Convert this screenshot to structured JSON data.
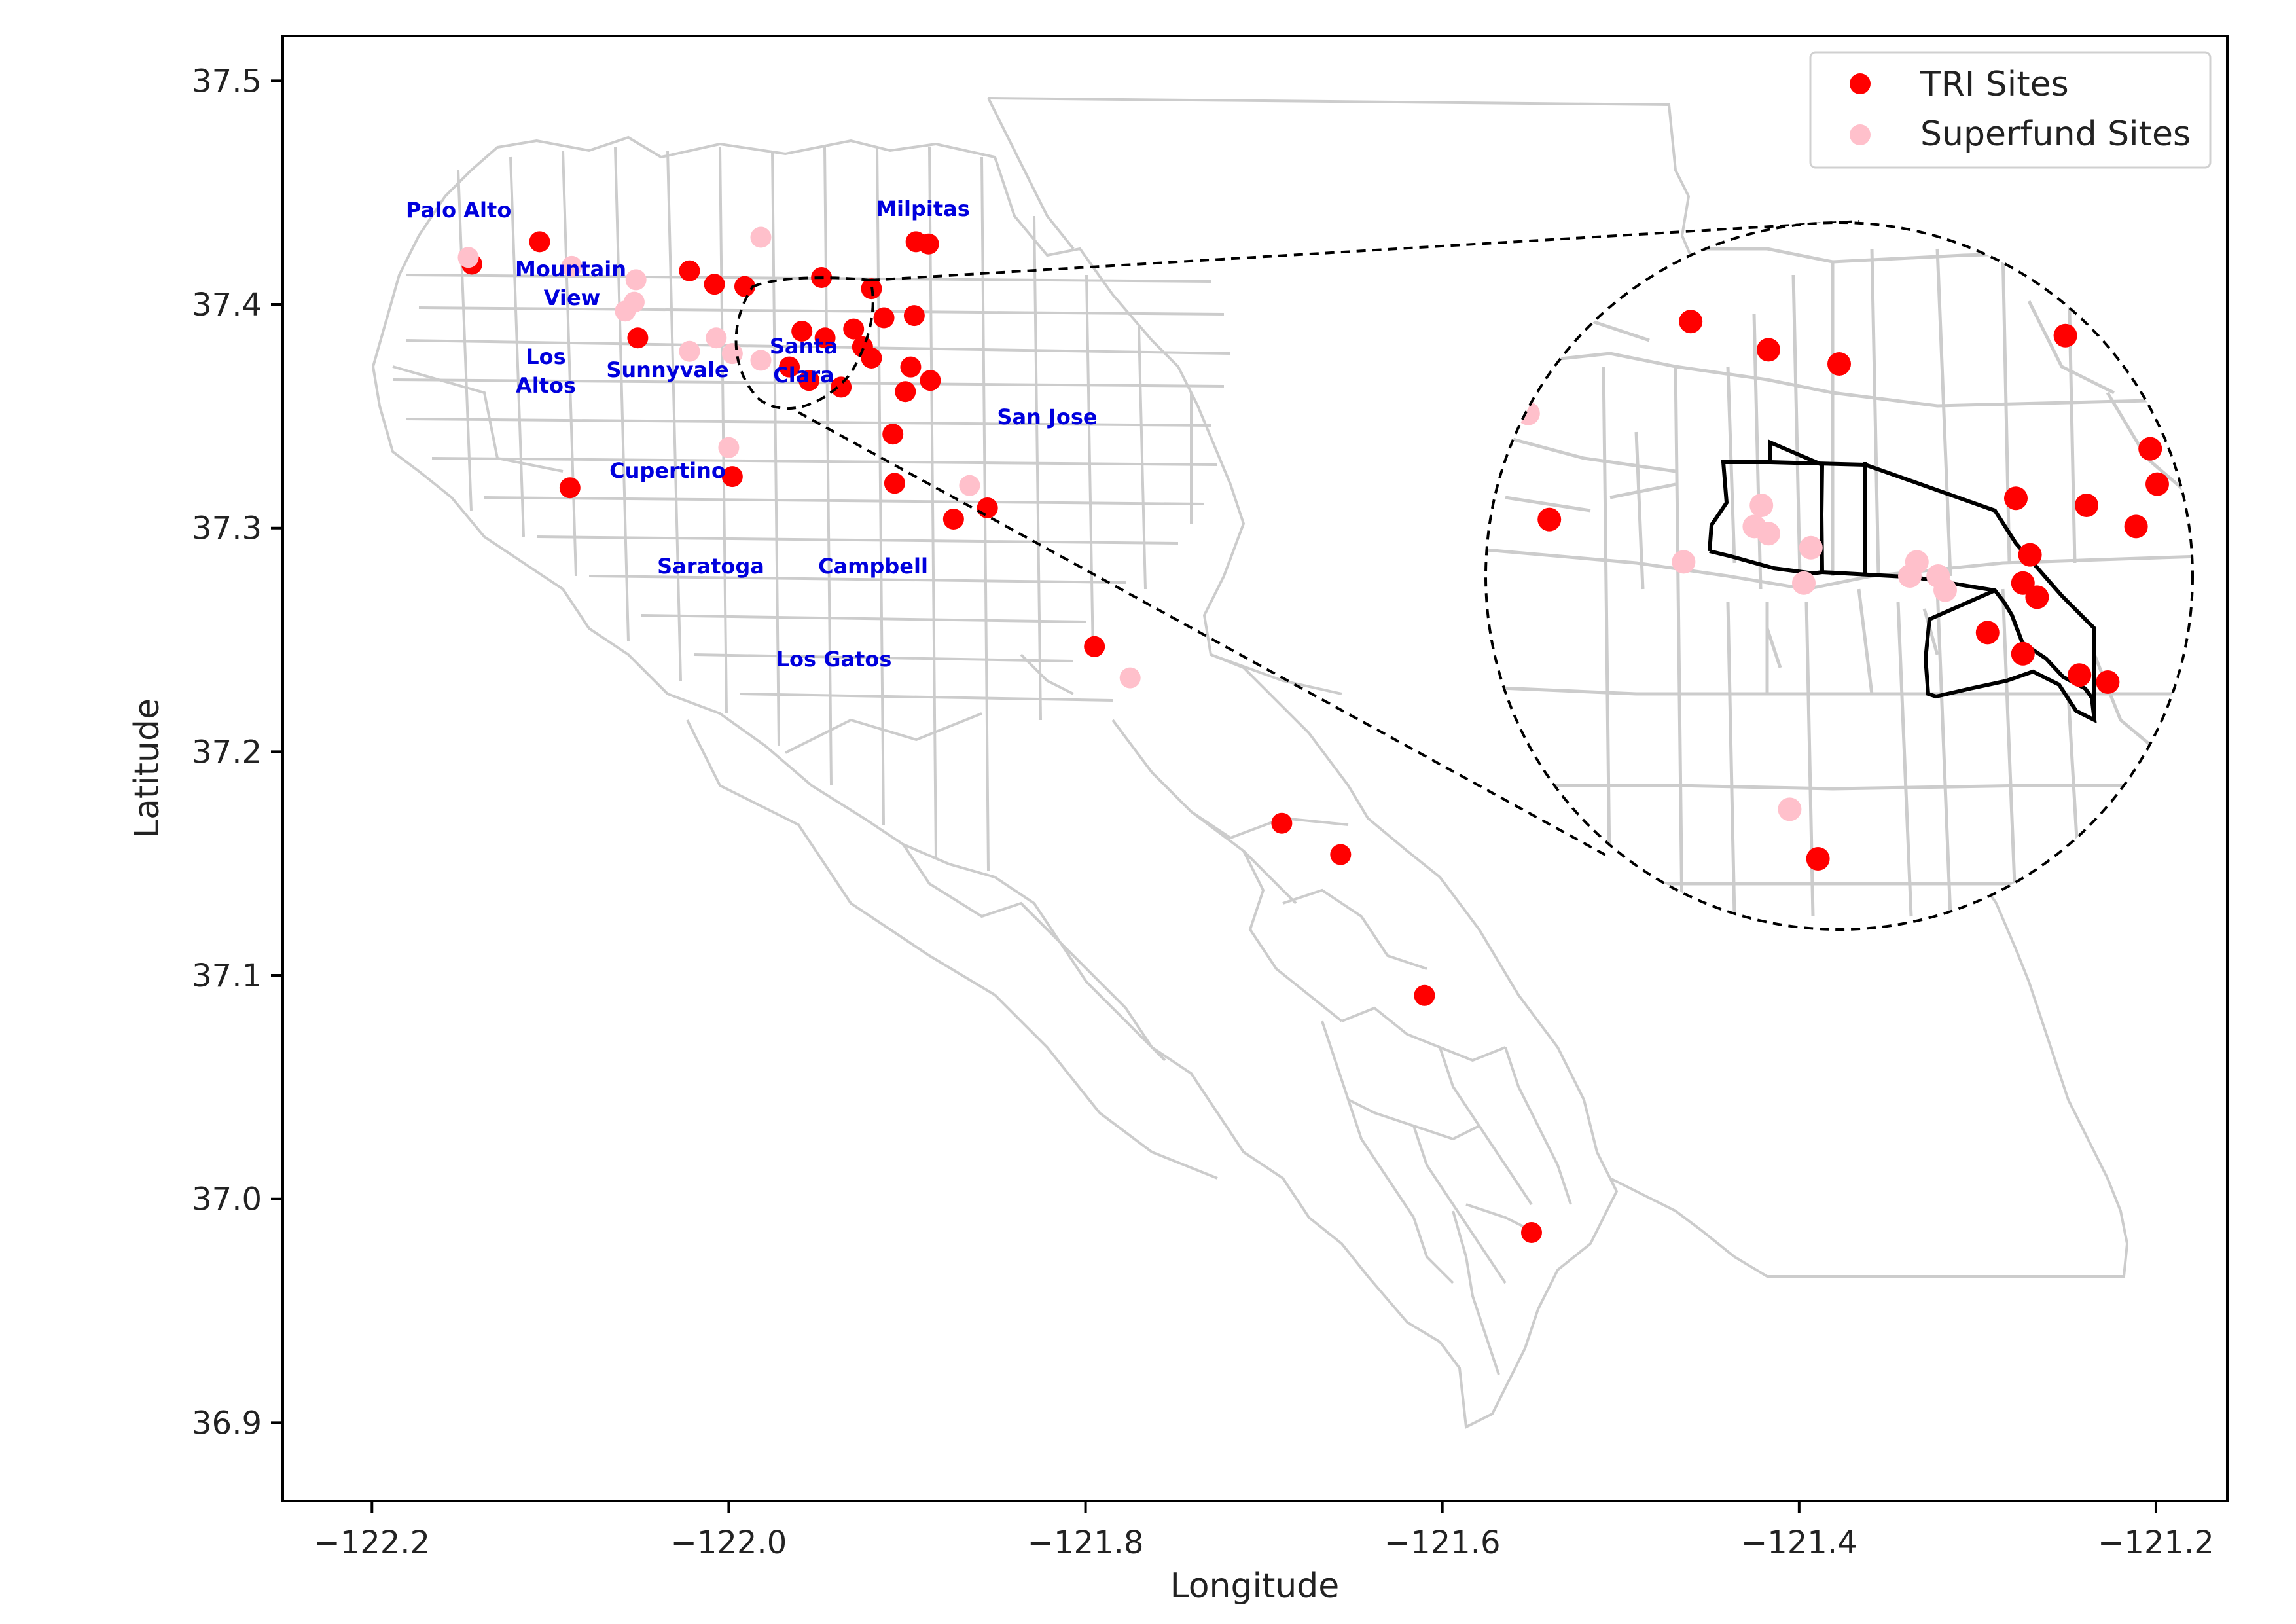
{
  "chart_data": {
    "type": "scatter",
    "xlabel": "Longitude",
    "ylabel": "Latitude",
    "xlim": [
      -122.25,
      -121.16
    ],
    "ylim": [
      36.865,
      37.52
    ],
    "xticks": [
      -122.2,
      -122.0,
      -121.8,
      -121.6,
      -121.4,
      -121.2
    ],
    "yticks": [
      36.9,
      37.0,
      37.1,
      37.2,
      37.3,
      37.4,
      37.5
    ],
    "xtick_labels": [
      "−122.2",
      "−122.0",
      "−121.8",
      "−121.6",
      "−121.4",
      "−121.2"
    ],
    "ytick_labels": [
      "36.9",
      "37.0",
      "37.1",
      "37.2",
      "37.3",
      "37.4",
      "37.5"
    ],
    "legend_position": "top-right",
    "legend": [
      {
        "label": "TRI Sites",
        "color": "#ff0000"
      },
      {
        "label": "Superfund Sites",
        "color": "#ffc0cb"
      }
    ],
    "series": [
      {
        "name": "TRI Sites",
        "color": "#ff0000",
        "points": [
          [
            -122.106,
            37.428
          ],
          [
            -122.144,
            37.418
          ],
          [
            -122.089,
            37.318
          ],
          [
            -122.051,
            37.385
          ],
          [
            -122.022,
            37.415
          ],
          [
            -122.008,
            37.409
          ],
          [
            -121.991,
            37.408
          ],
          [
            -121.948,
            37.412
          ],
          [
            -121.92,
            37.407
          ],
          [
            -121.959,
            37.388
          ],
          [
            -121.946,
            37.385
          ],
          [
            -121.93,
            37.389
          ],
          [
            -121.925,
            37.381
          ],
          [
            -121.913,
            37.394
          ],
          [
            -121.896,
            37.395
          ],
          [
            -121.92,
            37.376
          ],
          [
            -121.898,
            37.372
          ],
          [
            -121.887,
            37.366
          ],
          [
            -121.966,
            37.372
          ],
          [
            -121.955,
            37.366
          ],
          [
            -121.937,
            37.363
          ],
          [
            -121.901,
            37.361
          ],
          [
            -121.895,
            37.428
          ],
          [
            -121.888,
            37.427
          ],
          [
            -121.908,
            37.342
          ],
          [
            -121.907,
            37.32
          ],
          [
            -121.874,
            37.304
          ],
          [
            -121.855,
            37.309
          ],
          [
            -121.998,
            37.323
          ],
          [
            -121.795,
            37.247
          ],
          [
            -121.69,
            37.168
          ],
          [
            -121.657,
            37.154
          ],
          [
            -121.61,
            37.091
          ],
          [
            -121.55,
            36.985
          ]
        ]
      },
      {
        "name": "Superfund Sites",
        "color": "#ffc0cb",
        "points": [
          [
            -121.982,
            37.43
          ],
          [
            -122.088,
            37.417
          ],
          [
            -122.052,
            37.411
          ],
          [
            -122.058,
            37.397
          ],
          [
            -122.053,
            37.401
          ],
          [
            -122.022,
            37.379
          ],
          [
            -122.007,
            37.385
          ],
          [
            -121.998,
            37.378
          ],
          [
            -121.982,
            37.375
          ],
          [
            -122.0,
            37.336
          ],
          [
            -121.865,
            37.319
          ],
          [
            -121.775,
            37.233
          ],
          [
            -122.146,
            37.421
          ]
        ]
      }
    ]
  },
  "city_labels": [
    "Palo Alto",
    "Mountain",
    "View",
    "Los",
    "Altos",
    "Sunnyvale",
    "Santa",
    "Clara",
    "Milpitas",
    "San Jose",
    "Cupertino",
    "Saratoga",
    "Campbell",
    "Los Gatos"
  ],
  "inset": {
    "description_visible": false,
    "tri_points": [
      [
        0.29,
        0.14
      ],
      [
        0.4,
        0.18
      ],
      [
        0.5,
        0.2
      ],
      [
        0.82,
        0.16
      ],
      [
        0.94,
        0.32
      ],
      [
        0.95,
        0.37
      ],
      [
        0.09,
        0.42
      ],
      [
        0.75,
        0.39
      ],
      [
        0.85,
        0.4
      ],
      [
        0.77,
        0.47
      ],
      [
        0.92,
        0.43
      ],
      [
        0.76,
        0.51
      ],
      [
        0.78,
        0.53
      ],
      [
        0.71,
        0.58
      ],
      [
        0.76,
        0.61
      ],
      [
        0.84,
        0.64
      ],
      [
        0.88,
        0.65
      ],
      [
        0.47,
        0.9
      ]
    ],
    "superfund_points": [
      [
        0.06,
        0.27
      ],
      [
        0.39,
        0.4
      ],
      [
        0.38,
        0.43
      ],
      [
        0.4,
        0.44
      ],
      [
        0.46,
        0.46
      ],
      [
        0.28,
        0.48
      ],
      [
        0.45,
        0.51
      ],
      [
        0.6,
        0.5
      ],
      [
        0.61,
        0.48
      ],
      [
        0.64,
        0.5
      ],
      [
        0.65,
        0.52
      ],
      [
        0.43,
        0.83
      ]
    ]
  }
}
